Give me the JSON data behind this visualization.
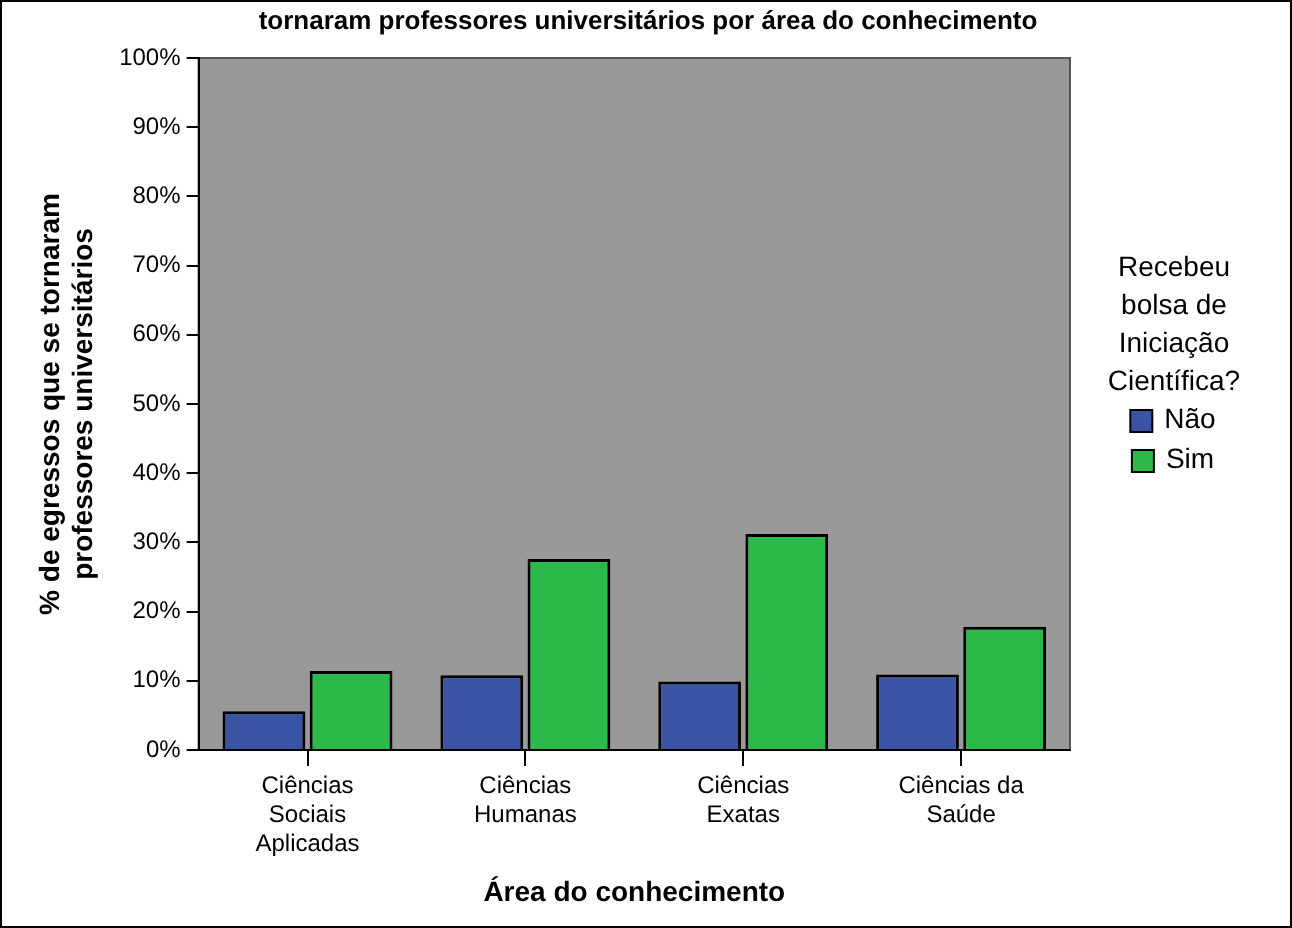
{
  "chart_data": {
    "type": "bar",
    "title": "tornaram professores universitários por área do conhecimento",
    "categories": [
      "Ciências Sociais Aplicadas",
      "Ciências Humanas",
      "Ciências Exatas",
      "Ciências da Saúde"
    ],
    "series": [
      {
        "name": "Não",
        "color": "#3a54a4",
        "values": [
          5.6,
          10.8,
          9.9,
          10.9
        ]
      },
      {
        "name": "Sim",
        "color": "#2db84a",
        "values": [
          11.4,
          27.6,
          31.2,
          17.8
        ]
      }
    ],
    "xlabel": "Área do conhecimento",
    "ylabel": "% de egressos que se tornaram professores universitários",
    "legend_title": "Recebeu bolsa de Iniciação Científica?",
    "legend": "right",
    "ylim": [
      0,
      100
    ],
    "yticks": [
      {
        "value": 0,
        "label": "0%"
      },
      {
        "value": 10,
        "label": "10%"
      },
      {
        "value": 20,
        "label": "20%"
      },
      {
        "value": 30,
        "label": "30%"
      },
      {
        "value": 40,
        "label": "40%"
      },
      {
        "value": 50,
        "label": "50%"
      },
      {
        "value": 60,
        "label": "60%"
      },
      {
        "value": 70,
        "label": "70%"
      },
      {
        "value": 80,
        "label": "80%"
      },
      {
        "value": 90,
        "label": "90%"
      },
      {
        "value": 100,
        "label": "100%"
      }
    ],
    "grid": false
  }
}
